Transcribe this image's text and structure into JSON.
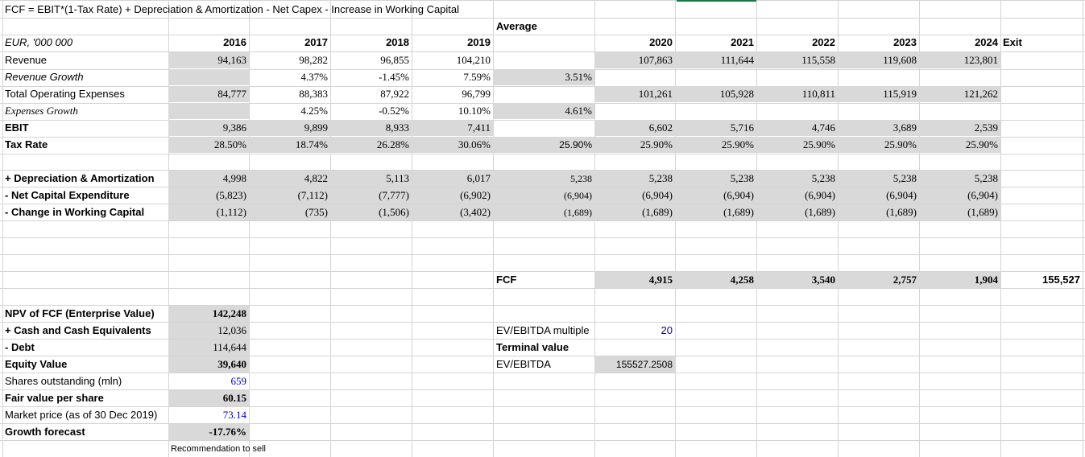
{
  "formula": "FCF = EBIT*(1-Tax Rate) + Depreciation & Amortization - Net Capex - Increase in Working Capital",
  "average_label": "Average",
  "units_label": "EUR, '000 000",
  "years": [
    "2016",
    "2017",
    "2018",
    "2019",
    "2020",
    "2021",
    "2022",
    "2023",
    "2024"
  ],
  "exit_label": "Exit",
  "rows": {
    "revenue": {
      "label": "Revenue",
      "hist": [
        "94,163",
        "98,282",
        "96,855",
        "104,210"
      ],
      "avg": "",
      "proj": [
        "107,863",
        "111,644",
        "115,558",
        "119,608",
        "123,801"
      ]
    },
    "revenue_growth": {
      "label": "Revenue Growth",
      "hist": [
        "",
        "4.37%",
        "-1.45%",
        "7.59%"
      ],
      "avg": "3.51%"
    },
    "total_opex": {
      "label": "Total Operating Expenses",
      "hist": [
        "84,777",
        "88,383",
        "87,922",
        "96,799"
      ],
      "avg": "",
      "proj": [
        "101,261",
        "105,928",
        "110,811",
        "115,919",
        "121,262"
      ]
    },
    "expenses_growth": {
      "label": "Expenses Growth",
      "hist": [
        "",
        "4.25%",
        "-0.52%",
        "10.10%"
      ],
      "avg": "4.61%"
    },
    "ebit": {
      "label": "EBIT",
      "hist": [
        "9,386",
        "9,899",
        "8,933",
        "7,411"
      ],
      "avg": "",
      "proj": [
        "6,602",
        "5,716",
        "4,746",
        "3,689",
        "2,539"
      ]
    },
    "tax_rate": {
      "label": "Tax Rate",
      "hist": [
        "28.50%",
        "18.74%",
        "26.28%",
        "30.06%"
      ],
      "avg": "25.90%",
      "proj": [
        "25.90%",
        "25.90%",
        "25.90%",
        "25.90%",
        "25.90%"
      ]
    },
    "da": {
      "label": "+ Depreciation & Amortization",
      "hist": [
        "4,998",
        "4,822",
        "5,113",
        "6,017"
      ],
      "avg": "5,238",
      "proj": [
        "5,238",
        "5,238",
        "5,238",
        "5,238",
        "5,238"
      ]
    },
    "capex": {
      "label": "- Net Capital Expenditure",
      "hist": [
        "(5,823)",
        "(7,112)",
        "(7,777)",
        "(6,902)"
      ],
      "avg": "(6,904)",
      "proj": [
        "(6,904)",
        "(6,904)",
        "(6,904)",
        "(6,904)",
        "(6,904)"
      ]
    },
    "wc": {
      "label": "- Change in Working Capital",
      "hist": [
        "(1,112)",
        "(735)",
        "(1,506)",
        "(3,402)"
      ],
      "avg": "(1,689)",
      "proj": [
        "(1,689)",
        "(1,689)",
        "(1,689)",
        "(1,689)",
        "(1,689)"
      ]
    }
  },
  "fcf": {
    "label": "FCF",
    "values": [
      "4,915",
      "4,258",
      "3,540",
      "2,757",
      "1,904"
    ],
    "exit_value": "155,527"
  },
  "valuation": [
    {
      "label": "NPV of FCF (Enterprise Value)",
      "value": "142,248"
    },
    {
      "label": "+ Cash and Cash Equivalents",
      "value": "12,036"
    },
    {
      "label": "- Debt",
      "value": "114,644"
    },
    {
      "label": "Equity Value",
      "value": "39,640"
    },
    {
      "label": "Shares outstanding (mln)",
      "value": "659"
    },
    {
      "label": "Fair value per share",
      "value": "60.15"
    },
    {
      "label": "Market price (as of 30 Dec 2019)",
      "value": "73.14"
    },
    {
      "label": "Growth forecast",
      "value": "-17.76%"
    }
  ],
  "recommendation": "Recommendation to sell",
  "terminal": {
    "multiple_label": "EV/EBITDA multiple",
    "multiple_value": "20",
    "terminal_label": "Terminal value",
    "method_label": "EV/EBITDA",
    "method_value": "155527.2508"
  }
}
